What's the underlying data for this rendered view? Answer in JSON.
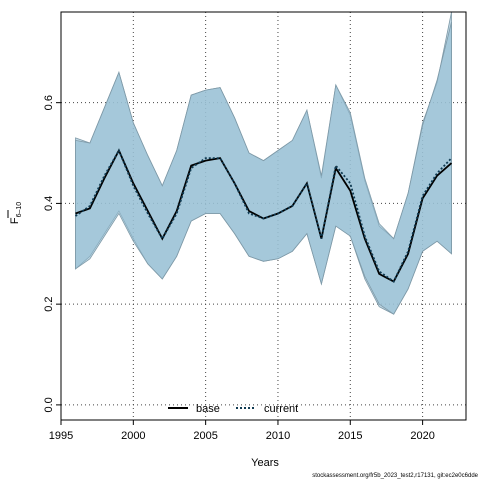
{
  "chart_data": {
    "type": "line",
    "xlabel": "Years",
    "ylabel_main": "F",
    "ylabel_sub": "6–10",
    "xlim": [
      1995,
      2023
    ],
    "ylim": [
      -0.03,
      0.78
    ],
    "x_ticks": [
      1995,
      2000,
      2005,
      2010,
      2015,
      2020
    ],
    "y_ticks": [
      0.0,
      0.2,
      0.4,
      0.6
    ],
    "y_tick_labels": [
      "0.0",
      "0.2",
      "0.4",
      "0.6"
    ],
    "grid": true,
    "legend_position": "bottom",
    "x": [
      1996,
      1997,
      1998,
      1999,
      2000,
      2001,
      2002,
      2003,
      2004,
      2005,
      2006,
      2007,
      2008,
      2009,
      2010,
      2011,
      2012,
      2013,
      2014,
      2015,
      2016,
      2017,
      2018,
      2019,
      2020,
      2021,
      2022
    ],
    "series": [
      {
        "name": "base",
        "color": "#000000",
        "style": "solid",
        "values": [
          0.38,
          0.39,
          0.45,
          0.505,
          0.44,
          0.385,
          0.33,
          0.385,
          0.475,
          0.485,
          0.49,
          0.44,
          0.385,
          0.37,
          0.38,
          0.395,
          0.44,
          0.33,
          0.47,
          0.425,
          0.33,
          0.26,
          0.245,
          0.3,
          0.41,
          0.455,
          0.48
        ],
        "lower": [
          0.27,
          0.295,
          0.34,
          0.385,
          0.33,
          0.28,
          0.25,
          0.295,
          0.365,
          0.38,
          0.38,
          0.34,
          0.295,
          0.285,
          0.29,
          0.305,
          0.34,
          0.24,
          0.355,
          0.335,
          0.25,
          0.195,
          0.18,
          0.23,
          0.305,
          0.325,
          0.3
        ],
        "upper": [
          0.53,
          0.52,
          0.59,
          0.66,
          0.56,
          0.495,
          0.435,
          0.505,
          0.615,
          0.625,
          0.63,
          0.57,
          0.5,
          0.485,
          0.505,
          0.525,
          0.585,
          0.45,
          0.635,
          0.575,
          0.445,
          0.355,
          0.33,
          0.42,
          0.56,
          0.64,
          0.78
        ],
        "band_color": "#a9c9db"
      },
      {
        "name": "current",
        "color": "#0f3a52",
        "style": "dotted",
        "values": [
          0.375,
          0.395,
          0.455,
          0.505,
          0.435,
          0.38,
          0.33,
          0.38,
          0.47,
          0.49,
          0.49,
          0.44,
          0.38,
          0.37,
          0.38,
          0.395,
          0.44,
          0.33,
          0.475,
          0.44,
          0.335,
          0.265,
          0.245,
          0.305,
          0.415,
          0.46,
          0.49
        ],
        "lower": [
          0.27,
          0.29,
          0.335,
          0.38,
          0.325,
          0.28,
          0.25,
          0.295,
          0.365,
          0.38,
          0.38,
          0.34,
          0.295,
          0.285,
          0.29,
          0.305,
          0.34,
          0.24,
          0.355,
          0.335,
          0.255,
          0.2,
          0.18,
          0.23,
          0.305,
          0.325,
          0.3
        ],
        "upper": [
          0.525,
          0.52,
          0.59,
          0.66,
          0.56,
          0.495,
          0.435,
          0.505,
          0.615,
          0.625,
          0.63,
          0.57,
          0.5,
          0.485,
          0.505,
          0.525,
          0.585,
          0.455,
          0.635,
          0.58,
          0.45,
          0.36,
          0.33,
          0.42,
          0.555,
          0.645,
          0.76
        ],
        "band_color": "#8fbbd1"
      }
    ]
  },
  "footer_text": "stockassessment.org/fr5b_2023_test2,r17131, git:ec2e0c6dde"
}
